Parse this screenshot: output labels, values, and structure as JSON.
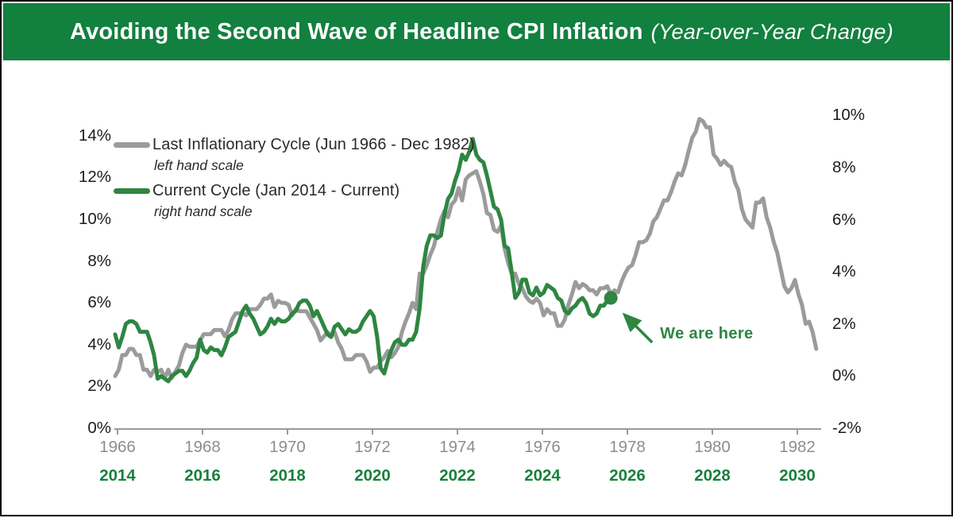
{
  "header": {
    "title": "Avoiding the Second Wave of Headline CPI Inflation",
    "subtitle": "(Year-over-Year Change)"
  },
  "legend": {
    "series1_label": "Last Inflationary Cycle (Jun 1966 - Dec 1982)",
    "series1_note": "left hand scale",
    "series2_label": "Current Cycle (Jan 2014 - Current)",
    "series2_note": "right hand scale"
  },
  "annotation": {
    "label": "We are here"
  },
  "colors": {
    "header_green": "#12803E",
    "text_green": "#17803C",
    "line_green": "#2E8641",
    "line_gray": "#9B9B9B",
    "axis_gray": "#9B9B9B",
    "year_gray": "#8D8D8D",
    "text_black": "#1C1C1C"
  },
  "chart_data": {
    "type": "line",
    "title": "Avoiding the Second Wave of Headline CPI Inflation",
    "subtitle": "(Year-over-Year Change)",
    "grid": false,
    "legend_position": "top-left",
    "x_axis": {
      "alignment": "months since cycle start, ticks every 24 months",
      "last_cycle_tick_labels": [
        "1966",
        "1968",
        "1970",
        "1972",
        "1974",
        "1976",
        "1978",
        "1980",
        "1982"
      ],
      "current_cycle_tick_labels": [
        "2014",
        "2016",
        "2018",
        "2020",
        "2022",
        "2024",
        "2026",
        "2028",
        "2030"
      ]
    },
    "left_axis": {
      "tick_values": [
        0,
        2,
        4,
        6,
        8,
        10,
        12,
        14
      ],
      "tick_labels": [
        "0%",
        "2%",
        "4%",
        "6%",
        "8%",
        "10%",
        "12%",
        "14%"
      ],
      "range": [
        0,
        14
      ]
    },
    "right_axis": {
      "tick_values": [
        -2,
        0,
        2,
        4,
        6,
        8,
        10
      ],
      "tick_labels": [
        "-2%",
        "0%",
        "2%",
        "4%",
        "6%",
        "8%",
        "10%"
      ],
      "range": [
        -2,
        10
      ]
    },
    "series": [
      {
        "name": "Last Inflationary Cycle (Jun 1966 - Dec 1982)",
        "scale": "left",
        "start": "Jun 1966",
        "color_key": "line_gray",
        "values": [
          2.5,
          2.8,
          3.5,
          3.5,
          3.8,
          3.8,
          3.5,
          3.5,
          2.8,
          2.8,
          2.5,
          2.8,
          2.7,
          2.8,
          2.4,
          2.8,
          2.4,
          2.7,
          3.0,
          3.6,
          4.0,
          3.9,
          3.9,
          3.9,
          4.2,
          4.5,
          4.5,
          4.5,
          4.7,
          4.7,
          4.7,
          4.4,
          4.7,
          5.2,
          5.5,
          5.5,
          5.5,
          5.4,
          5.7,
          5.7,
          5.7,
          5.9,
          6.2,
          6.2,
          6.4,
          5.8,
          6.1,
          6.0,
          6.0,
          5.9,
          5.4,
          5.7,
          5.6,
          5.6,
          5.6,
          5.3,
          5.0,
          4.7,
          4.2,
          4.4,
          4.6,
          4.4,
          4.6,
          4.1,
          3.8,
          3.3,
          3.3,
          3.3,
          3.5,
          3.5,
          3.5,
          3.2,
          2.7,
          2.9,
          2.9,
          3.2,
          3.4,
          3.7,
          3.4,
          3.6,
          3.9,
          4.6,
          5.1,
          5.5,
          6.0,
          5.7,
          7.4,
          7.4,
          7.8,
          8.3,
          8.7,
          9.4,
          10.0,
          10.4,
          10.1,
          10.7,
          10.9,
          11.5,
          10.9,
          11.9,
          12.1,
          12.2,
          12.3,
          11.8,
          11.2,
          10.3,
          10.2,
          9.5,
          9.4,
          9.7,
          8.6,
          7.9,
          7.4,
          7.4,
          6.9,
          6.7,
          6.3,
          6.1,
          6.0,
          6.2,
          6.0,
          5.4,
          5.7,
          5.5,
          5.5,
          4.9,
          4.9,
          5.2,
          5.9,
          6.4,
          7.0,
          6.7,
          6.9,
          6.8,
          6.6,
          6.6,
          6.4,
          6.7,
          6.7,
          6.8,
          6.4,
          6.6,
          6.5,
          7.0,
          7.4,
          7.7,
          7.8,
          8.3,
          8.9,
          8.9,
          9.0,
          9.3,
          9.9,
          10.1,
          10.5,
          10.9,
          10.9,
          11.3,
          11.8,
          12.2,
          12.1,
          12.6,
          13.3,
          13.9,
          14.2,
          14.8,
          14.7,
          14.4,
          14.4,
          13.1,
          12.9,
          12.6,
          12.8,
          12.6,
          12.5,
          11.8,
          11.4,
          10.5,
          10.0,
          9.8,
          9.6,
          10.8,
          10.8,
          11.0,
          10.1,
          9.6,
          8.9,
          8.4,
          7.6,
          6.8,
          6.5,
          6.7,
          7.1,
          6.4,
          5.9,
          5.0,
          5.1,
          4.6,
          3.8
        ]
      },
      {
        "name": "Current Cycle (Jan 2014 - Current)",
        "scale": "right",
        "start": "Jan 2014",
        "color_key": "line_green",
        "values": [
          1.6,
          1.1,
          1.5,
          2.0,
          2.1,
          2.1,
          2.0,
          1.7,
          1.7,
          1.7,
          1.3,
          0.8,
          -0.1,
          0.0,
          -0.1,
          -0.2,
          0.0,
          0.1,
          0.2,
          0.2,
          0.0,
          0.2,
          0.5,
          0.7,
          1.4,
          1.0,
          0.9,
          1.1,
          1.0,
          1.0,
          0.8,
          1.1,
          1.5,
          1.6,
          1.7,
          2.1,
          2.5,
          2.7,
          2.4,
          2.2,
          1.9,
          1.6,
          1.7,
          1.9,
          2.2,
          2.0,
          2.2,
          2.1,
          2.1,
          2.2,
          2.4,
          2.5,
          2.8,
          2.9,
          2.9,
          2.7,
          2.3,
          2.5,
          2.2,
          1.9,
          1.6,
          1.5,
          1.9,
          2.0,
          1.8,
          1.6,
          1.8,
          1.7,
          1.7,
          1.8,
          2.1,
          2.3,
          2.5,
          2.3,
          1.5,
          0.3,
          0.1,
          0.6,
          1.0,
          1.3,
          1.4,
          1.2,
          1.2,
          1.4,
          1.4,
          1.7,
          2.6,
          4.2,
          5.0,
          5.4,
          5.4,
          5.3,
          5.4,
          6.2,
          6.8,
          7.0,
          7.5,
          7.9,
          8.5,
          8.3,
          8.6,
          9.1,
          8.5,
          8.3,
          8.2,
          7.7,
          7.1,
          6.5,
          6.4,
          6.0,
          5.0,
          4.9,
          4.0,
          3.0,
          3.2,
          3.7,
          3.7,
          3.2,
          3.1,
          3.4,
          3.1,
          3.2,
          3.5,
          3.4,
          3.3,
          3.0,
          2.9,
          2.5,
          2.4,
          2.6,
          2.7,
          2.9,
          3.0,
          2.8,
          2.4,
          2.3,
          2.4,
          2.7,
          2.7,
          2.9,
          3.0
        ]
      }
    ],
    "marker": {
      "series": "Current Cycle (Jan 2014 - Current)",
      "at_last_point": true,
      "value": 3.0,
      "label": "We are here"
    }
  }
}
